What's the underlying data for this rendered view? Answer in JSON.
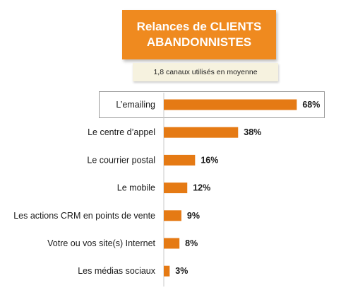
{
  "chart_data": {
    "type": "bar",
    "orientation": "horizontal",
    "title_line1": "Relances de CLIENTS",
    "title_line2": "ABANDONNISTES",
    "subtitle": "1,8 canaux utilisés en moyenne",
    "categories": [
      "L’emailing",
      "Le centre d’appel",
      "Le courrier postal",
      "Le mobile",
      "Les actions CRM en points de vente",
      "Votre ou vos site(s) Internet",
      "Les médias sociaux"
    ],
    "values": [
      68,
      38,
      16,
      12,
      9,
      8,
      3
    ],
    "value_labels": [
      "68%",
      "38%",
      "16%",
      "12%",
      "9%",
      "8%",
      "3%"
    ],
    "highlighted_category": "L’emailing",
    "xlim": [
      0,
      100
    ],
    "grid": false,
    "colors": {
      "bar": "#e57a14",
      "title_bg": "#ef8a1f",
      "subtitle_bg": "#f6f2df"
    }
  }
}
